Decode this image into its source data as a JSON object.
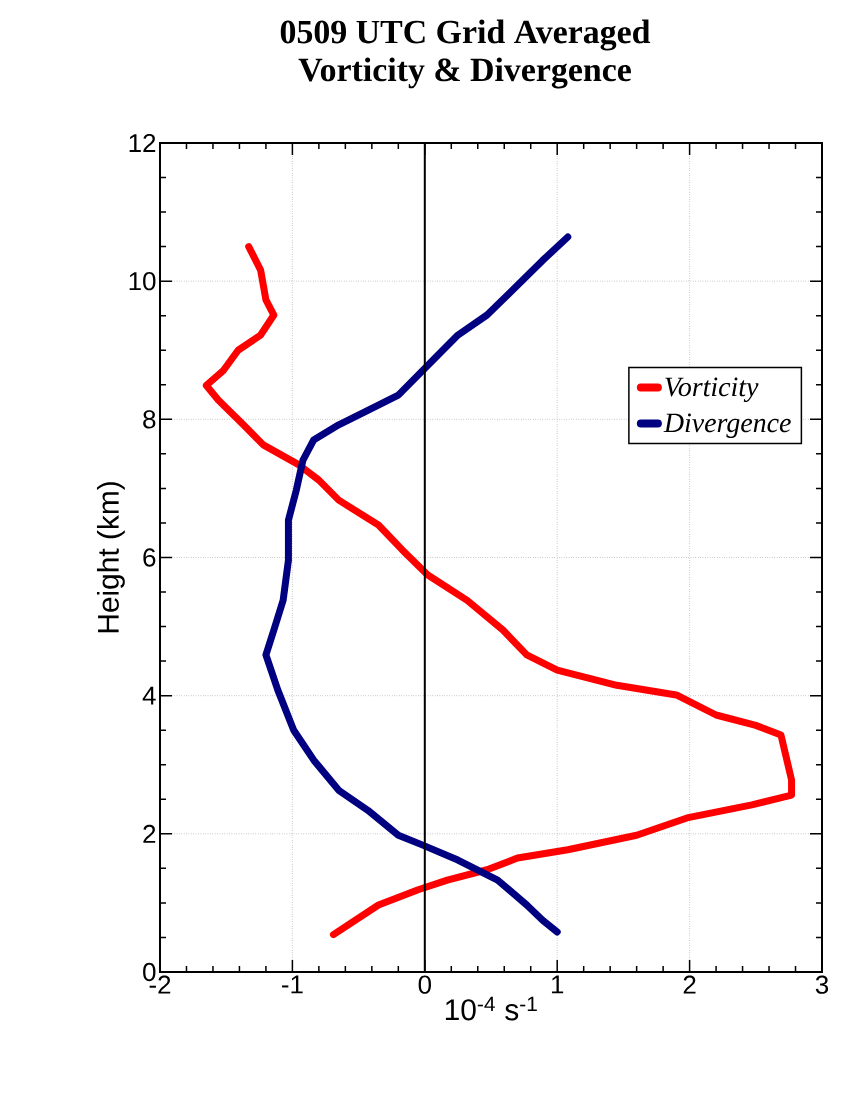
{
  "chart_data": {
    "type": "line",
    "title": "0509 UTC Grid Averaged\nVorticity & Divergence",
    "xlabel": "10$^{-4}$ s$^{-1}$",
    "ylabel": "Height (km)",
    "xlim": [
      -2,
      3
    ],
    "ylim": [
      0,
      12
    ],
    "xticks": [
      -2,
      -1,
      0,
      1,
      2,
      3
    ],
    "yticks": [
      0,
      2,
      4,
      6,
      8,
      10,
      12
    ],
    "grid": true,
    "legend": "top right",
    "line_style": "solid",
    "marker": "none",
    "ref_lines": [
      {
        "axis": "x",
        "value": 0,
        "color": "#000000",
        "line_style": "solid"
      }
    ],
    "series": [
      {
        "name": "Vorticity",
        "color": "#ff0000",
        "x": [
          -1.33,
          -1.24,
          -1.2,
          -1.14,
          -1.24,
          -1.41,
          -1.52,
          -1.65,
          -1.56,
          -1.37,
          -1.22,
          -0.95,
          -0.8,
          -0.65,
          -0.35,
          -0.17,
          0.02,
          0.32,
          0.59,
          0.77,
          1.0,
          1.45,
          1.9,
          2.2,
          2.5,
          2.69,
          2.77,
          2.77,
          2.47,
          1.98,
          1.6,
          1.08,
          0.7,
          0.47,
          0.17,
          -0.05,
          -0.35,
          -0.69
        ],
        "values": [
          10.5,
          10.16,
          9.73,
          9.51,
          9.22,
          9.0,
          8.71,
          8.49,
          8.28,
          7.92,
          7.63,
          7.34,
          7.12,
          6.83,
          6.47,
          6.11,
          5.75,
          5.38,
          4.95,
          4.59,
          4.37,
          4.15,
          4.01,
          3.72,
          3.57,
          3.43,
          2.78,
          2.56,
          2.42,
          2.23,
          1.98,
          1.77,
          1.65,
          1.48,
          1.33,
          1.19,
          0.97,
          0.54
        ]
      },
      {
        "name": "Divergence",
        "color": "#000080",
        "x": [
          1.08,
          0.89,
          0.7,
          0.47,
          0.25,
          0.1,
          -0.05,
          -0.2,
          -0.43,
          -0.65,
          -0.84,
          -0.92,
          -0.97,
          -1.03,
          -1.03,
          -1.07,
          -1.14,
          -1.2,
          -1.11,
          -0.99,
          -0.84,
          -0.65,
          -0.43,
          -0.2,
          -0.02,
          0.25,
          0.55,
          0.77,
          0.89,
          1.0
        ],
        "values": [
          10.64,
          10.3,
          9.94,
          9.51,
          9.22,
          8.93,
          8.64,
          8.35,
          8.13,
          7.92,
          7.7,
          7.41,
          6.98,
          6.54,
          5.96,
          5.38,
          4.95,
          4.59,
          4.08,
          3.5,
          3.07,
          2.63,
          2.34,
          1.98,
          1.84,
          1.62,
          1.33,
          0.97,
          0.75,
          0.58
        ]
      }
    ]
  }
}
